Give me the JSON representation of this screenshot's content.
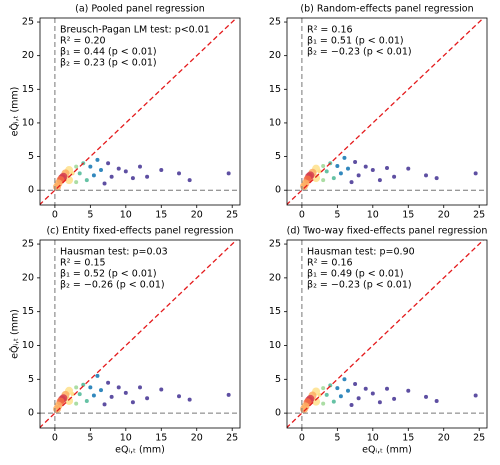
{
  "chart_data": [
    {
      "type": "scatter",
      "title": "(a) Pooled panel regression",
      "annotations": [
        "Breusch-Pagan LM test: p<0.01",
        "R² = 0.20",
        "β₁ = 0.44 (p < 0.01)",
        "β₂ = 0.23 (p < 0.01)"
      ],
      "ylabel": "eQ̂ᵢ,ₜ (mm)",
      "x": [
        24.5,
        19,
        17.5,
        15,
        13,
        12,
        11,
        10,
        9,
        8,
        7.5,
        7,
        6.5,
        6,
        5.5,
        5,
        4.5,
        4,
        3.5,
        3,
        3,
        2.5,
        2,
        2,
        1.5,
        1.2,
        1,
        0.8,
        0.5,
        0.3
      ],
      "y": [
        2.5,
        1.5,
        2.5,
        3.0,
        2.0,
        3.5,
        1.8,
        2.8,
        3.2,
        2.0,
        4.0,
        1.0,
        3.0,
        4.5,
        2.2,
        3.5,
        1.5,
        4.0,
        2.5,
        3.5,
        1.2,
        2.5,
        3.0,
        1.5,
        2.5,
        2.0,
        1.8,
        1.5,
        1.0,
        0.5
      ],
      "colors": [
        "#5e4fa2",
        "#5e4fa2",
        "#5e4fa2",
        "#5e4fa2",
        "#5e4fa2",
        "#5e4fa2",
        "#5e4fa2",
        "#5e4fa2",
        "#5e4fa2",
        "#5e4fa2",
        "#5e4fa2",
        "#5e4fa2",
        "#3288bd",
        "#3288bd",
        "#3288bd",
        "#3288bd",
        "#66c2a5",
        "#66c2a5",
        "#66c2a5",
        "#abdda4",
        "#abdda4",
        "#fee08b",
        "#fee08b",
        "#fee08b",
        "#fdae61",
        "#d53e4f",
        "#d53e4f",
        "#f46d43",
        "#fdae61",
        "#fdae61"
      ],
      "xlim": [
        -2.1,
        26.1
      ],
      "ylim": [
        -2.2,
        25.6
      ],
      "xticks": [
        0,
        5,
        10,
        15,
        20,
        25
      ],
      "yticks": [
        0,
        5,
        10,
        15,
        20,
        25
      ],
      "hlines": [
        0
      ],
      "vlines": [
        0
      ],
      "diagonal_color": "#e41a1c"
    },
    {
      "type": "scatter",
      "title": "(b) Random-effects panel regression",
      "annotations": [
        "R² = 0.16",
        "β₁ = 0.51 (p < 0.01)",
        "β₂ = −0.23 (p < 0.01)"
      ],
      "x": [
        24.5,
        19,
        17.5,
        15,
        13,
        12,
        11,
        10,
        9,
        8,
        7.5,
        7,
        6.5,
        6,
        5.5,
        5,
        4.5,
        4,
        3.5,
        3,
        3,
        2.5,
        2,
        2,
        1.5,
        1.2,
        1,
        0.8,
        0.5,
        0.3
      ],
      "y": [
        2.5,
        1.8,
        2.2,
        3.2,
        2.0,
        3.3,
        1.5,
        3.0,
        3.5,
        2.2,
        4.2,
        1.2,
        3.2,
        4.8,
        2.5,
        3.6,
        1.8,
        4.0,
        2.8,
        3.6,
        1.5,
        2.8,
        3.2,
        1.8,
        2.6,
        2.2,
        2.0,
        1.6,
        1.0,
        0.6
      ],
      "colors": [
        "#5e4fa2",
        "#5e4fa2",
        "#5e4fa2",
        "#5e4fa2",
        "#5e4fa2",
        "#5e4fa2",
        "#5e4fa2",
        "#5e4fa2",
        "#5e4fa2",
        "#5e4fa2",
        "#5e4fa2",
        "#5e4fa2",
        "#3288bd",
        "#3288bd",
        "#3288bd",
        "#3288bd",
        "#66c2a5",
        "#66c2a5",
        "#66c2a5",
        "#abdda4",
        "#abdda4",
        "#fee08b",
        "#fee08b",
        "#fee08b",
        "#fdae61",
        "#d53e4f",
        "#d53e4f",
        "#f46d43",
        "#fdae61",
        "#fdae61"
      ],
      "xlim": [
        -2.1,
        26.1
      ],
      "ylim": [
        -2.2,
        25.6
      ],
      "xticks": [
        0,
        5,
        10,
        15,
        20,
        25
      ],
      "yticks": [
        0,
        5,
        10,
        15,
        20,
        25
      ],
      "hlines": [
        0
      ],
      "vlines": [
        0
      ],
      "diagonal_color": "#e41a1c"
    },
    {
      "type": "scatter",
      "title": "(c) Entity fixed-effects panel regression",
      "annotations": [
        "Hausman test: p=0.03",
        "R² = 0.15",
        "β₁ = 0.52 (p < 0.01)",
        "β₂ = −0.26 (p < 0.01)"
      ],
      "xlabel": "eQᵢ,ₜ (mm)",
      "ylabel": "eQ̂ᵢ,ₜ (mm)",
      "x": [
        24.5,
        19,
        17.5,
        15,
        13,
        12,
        11,
        10,
        9,
        8,
        7.5,
        7,
        6.5,
        6,
        5.5,
        5,
        4.5,
        4,
        3.5,
        3,
        3,
        2.5,
        2,
        2,
        1.5,
        1.2,
        1,
        0.8,
        0.5,
        0.3
      ],
      "y": [
        2.7,
        2.0,
        2.5,
        3.5,
        2.2,
        3.8,
        1.6,
        3.0,
        3.8,
        2.4,
        4.5,
        1.3,
        3.4,
        5.5,
        2.6,
        3.8,
        1.8,
        4.2,
        2.8,
        3.8,
        1.4,
        2.8,
        3.3,
        1.8,
        2.7,
        2.2,
        2.0,
        1.7,
        1.1,
        0.6
      ],
      "colors": [
        "#5e4fa2",
        "#5e4fa2",
        "#5e4fa2",
        "#5e4fa2",
        "#5e4fa2",
        "#5e4fa2",
        "#5e4fa2",
        "#5e4fa2",
        "#5e4fa2",
        "#5e4fa2",
        "#5e4fa2",
        "#5e4fa2",
        "#3288bd",
        "#3288bd",
        "#3288bd",
        "#3288bd",
        "#66c2a5",
        "#66c2a5",
        "#66c2a5",
        "#abdda4",
        "#abdda4",
        "#fee08b",
        "#fee08b",
        "#fee08b",
        "#fdae61",
        "#d53e4f",
        "#d53e4f",
        "#f46d43",
        "#fdae61",
        "#fdae61"
      ],
      "xlim": [
        -2.1,
        26.1
      ],
      "ylim": [
        -2.2,
        25.6
      ],
      "xticks": [
        0,
        5,
        10,
        15,
        20,
        25
      ],
      "yticks": [
        0,
        5,
        10,
        15,
        20,
        25
      ],
      "hlines": [
        0
      ],
      "vlines": [
        0
      ],
      "diagonal_color": "#e41a1c"
    },
    {
      "type": "scatter",
      "title": "(d) Two-way fixed-effects panel regression",
      "annotations": [
        "Hausman test: p=0.90",
        "R² = 0.16",
        "β₁ = 0.49 (p < 0.01)",
        "β₂ = −0.23 (p < 0.01)"
      ],
      "xlabel": "eQᵢ,ₜ (mm)",
      "x": [
        24.5,
        19,
        17.5,
        15,
        13,
        12,
        11,
        10,
        9,
        8,
        7.5,
        7,
        6.5,
        6,
        5.5,
        5,
        4.5,
        4,
        3.5,
        3,
        3,
        2.5,
        2,
        2,
        1.5,
        1.2,
        1,
        0.8,
        0.5,
        0.3
      ],
      "y": [
        2.6,
        1.8,
        2.4,
        3.3,
        2.1,
        3.6,
        1.6,
        2.9,
        3.6,
        2.2,
        4.3,
        1.2,
        3.3,
        5.0,
        2.5,
        3.7,
        1.7,
        4.1,
        2.7,
        3.7,
        1.4,
        2.7,
        3.2,
        1.7,
        2.6,
        2.1,
        1.9,
        1.6,
        1.0,
        0.6
      ],
      "colors": [
        "#5e4fa2",
        "#5e4fa2",
        "#5e4fa2",
        "#5e4fa2",
        "#5e4fa2",
        "#5e4fa2",
        "#5e4fa2",
        "#5e4fa2",
        "#5e4fa2",
        "#5e4fa2",
        "#5e4fa2",
        "#5e4fa2",
        "#3288bd",
        "#3288bd",
        "#3288bd",
        "#3288bd",
        "#66c2a5",
        "#66c2a5",
        "#66c2a5",
        "#abdda4",
        "#abdda4",
        "#fee08b",
        "#fee08b",
        "#fee08b",
        "#fdae61",
        "#d53e4f",
        "#d53e4f",
        "#f46d43",
        "#fdae61",
        "#fdae61"
      ],
      "xlim": [
        -2.1,
        26.1
      ],
      "ylim": [
        -2.2,
        25.6
      ],
      "xticks": [
        0,
        5,
        10,
        15,
        20,
        25
      ],
      "yticks": [
        0,
        5,
        10,
        15,
        20,
        25
      ],
      "hlines": [
        0
      ],
      "vlines": [
        0
      ],
      "diagonal_color": "#e41a1c"
    }
  ]
}
